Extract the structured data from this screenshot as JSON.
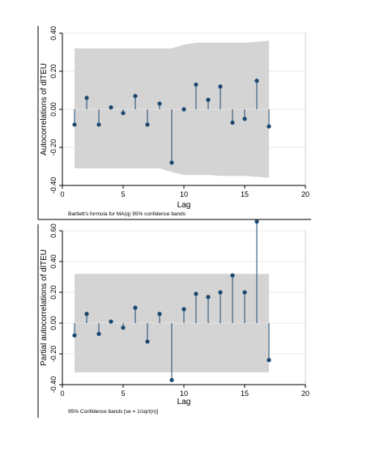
{
  "chart_data": [
    {
      "type": "stem",
      "xlabel": "Lag",
      "ylabel": "Autocorrelations of dlTEU",
      "note": "Bartlett's formula for MA(q) 95% confidence bands",
      "xlim": [
        0,
        20
      ],
      "ylim": [
        -0.4,
        0.4
      ],
      "xticks": [
        0,
        5,
        10,
        15,
        20
      ],
      "yticks": [
        -0.4,
        -0.2,
        0.0,
        0.2,
        0.4
      ],
      "ytick_labels": [
        "-0.40",
        "-0.20",
        "0.00",
        "0.20",
        "0.40"
      ],
      "lags": [
        1,
        2,
        3,
        4,
        5,
        6,
        7,
        8,
        9,
        10,
        11,
        12,
        13,
        14,
        15,
        16,
        17
      ],
      "values": [
        -0.08,
        0.06,
        -0.08,
        0.01,
        -0.02,
        0.07,
        -0.08,
        0.03,
        -0.28,
        0.0,
        0.13,
        0.05,
        0.12,
        -0.07,
        -0.05,
        0.15,
        -0.09
      ],
      "band_upper": [
        0.32,
        0.32,
        0.32,
        0.32,
        0.32,
        0.32,
        0.32,
        0.32,
        0.32,
        0.34,
        0.35,
        0.35,
        0.35,
        0.35,
        0.35,
        0.355,
        0.36
      ],
      "band_lower": [
        -0.31,
        -0.31,
        -0.31,
        -0.31,
        -0.31,
        -0.31,
        -0.31,
        -0.31,
        -0.33,
        -0.345,
        -0.345,
        -0.345,
        -0.35,
        -0.35,
        -0.35,
        -0.355,
        -0.36
      ],
      "band_color": "#d4d4d4",
      "marker_color": "#1a476f",
      "grid": true
    },
    {
      "type": "stem",
      "xlabel": "Lag",
      "ylabel": "Partial autocorrelations of dlTEU",
      "note": "95% Confidence bands [se = 1/sqrt(n)]",
      "xlim": [
        0,
        20
      ],
      "ylim": [
        -0.4,
        0.6
      ],
      "xticks": [
        0,
        5,
        10,
        15,
        20
      ],
      "yticks": [
        -0.4,
        -0.2,
        0.0,
        0.2,
        0.4,
        0.6
      ],
      "ytick_labels": [
        "-0.40",
        "-0.20",
        "0.00",
        "0.20",
        "0.40",
        "0.60"
      ],
      "lags": [
        1,
        2,
        3,
        4,
        5,
        6,
        7,
        8,
        9,
        10,
        11,
        12,
        13,
        14,
        15,
        16,
        17
      ],
      "values": [
        -0.08,
        0.06,
        -0.07,
        0.01,
        -0.03,
        0.1,
        -0.12,
        0.06,
        -0.37,
        0.09,
        0.19,
        0.17,
        0.2,
        0.31,
        0.2,
        0.66,
        -0.24
      ],
      "band_upper": [
        0.32,
        0.32,
        0.32,
        0.32,
        0.32,
        0.32,
        0.32,
        0.32,
        0.32,
        0.32,
        0.32,
        0.32,
        0.32,
        0.32,
        0.32,
        0.32,
        0.32
      ],
      "band_lower": [
        -0.32,
        -0.32,
        -0.32,
        -0.32,
        -0.32,
        -0.32,
        -0.32,
        -0.32,
        -0.32,
        -0.32,
        -0.32,
        -0.32,
        -0.32,
        -0.32,
        -0.32,
        -0.32,
        -0.32
      ],
      "band_color": "#d4d4d4",
      "marker_color": "#1a476f",
      "grid": true
    }
  ]
}
